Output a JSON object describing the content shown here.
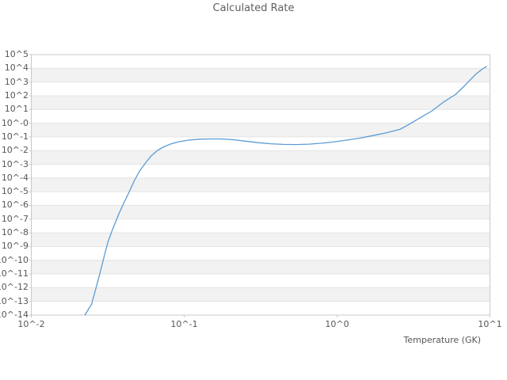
{
  "chart_data": {
    "type": "line",
    "title": "Calculated Rate",
    "xlabel": "Temperature (GK)",
    "ylabel": "",
    "x_scale": "log10",
    "y_scale": "log10",
    "x_range_log10": [
      -2,
      1
    ],
    "y_range_log10": [
      -14,
      5
    ],
    "x_tick_labels": [
      "10^-2",
      "10^-1",
      "10^0",
      "10^1"
    ],
    "x_tick_log10": [
      -2,
      -1,
      0,
      1
    ],
    "y_tick_labels": [
      "10^5",
      "10^4",
      "10^3",
      "10^2",
      "10^1",
      "10^-0",
      "10^-1",
      "10^-2",
      "10^-3",
      "10^-4",
      "10^-5",
      "10^-6",
      "10^-7",
      "10^-8",
      "10^-9",
      "10^-10",
      "10^-11",
      "10^-12",
      "10^-13",
      "10^-14"
    ],
    "y_tick_log10": [
      5,
      4,
      3,
      2,
      1,
      0,
      -1,
      -2,
      -3,
      -4,
      -5,
      -6,
      -7,
      -8,
      -9,
      -10,
      -11,
      -12,
      -13,
      -14
    ],
    "grid": "horizontal decade lines with alternating stripe bands",
    "legend": "none",
    "colors": {
      "line": "#5b9bd5",
      "stripe_fill": "#f2f2f2",
      "gridline": "#e4e4e4",
      "border": "#c9c9c9",
      "tick": "#c9c9c9",
      "text": "#565656"
    },
    "series": [
      {
        "name": "Calculated Rate",
        "points_T_log10rate": [
          [
            0.0224,
            -14.0
          ],
          [
            0.0231,
            -13.77
          ],
          [
            0.0239,
            -13.48
          ],
          [
            0.0248,
            -13.22
          ],
          [
            0.0253,
            -12.84
          ],
          [
            0.0263,
            -12.15
          ],
          [
            0.0276,
            -11.29
          ],
          [
            0.029,
            -10.36
          ],
          [
            0.0304,
            -9.44
          ],
          [
            0.0318,
            -8.63
          ],
          [
            0.0335,
            -7.94
          ],
          [
            0.0355,
            -7.24
          ],
          [
            0.0376,
            -6.55
          ],
          [
            0.0404,
            -5.8
          ],
          [
            0.0433,
            -5.11
          ],
          [
            0.047,
            -4.24
          ],
          [
            0.0511,
            -3.49
          ],
          [
            0.0558,
            -2.91
          ],
          [
            0.0607,
            -2.39
          ],
          [
            0.0669,
            -1.99
          ],
          [
            0.0736,
            -1.73
          ],
          [
            0.0821,
            -1.51
          ],
          [
            0.0923,
            -1.35
          ],
          [
            0.106,
            -1.24
          ],
          [
            0.125,
            -1.17
          ],
          [
            0.148,
            -1.15
          ],
          [
            0.175,
            -1.15
          ],
          [
            0.207,
            -1.2
          ],
          [
            0.251,
            -1.31
          ],
          [
            0.304,
            -1.42
          ],
          [
            0.368,
            -1.5
          ],
          [
            0.446,
            -1.55
          ],
          [
            0.54,
            -1.56
          ],
          [
            0.654,
            -1.53
          ],
          [
            0.793,
            -1.46
          ],
          [
            0.96,
            -1.36
          ],
          [
            1.16,
            -1.23
          ],
          [
            1.41,
            -1.09
          ],
          [
            1.71,
            -0.91
          ],
          [
            2.07,
            -0.72
          ],
          [
            2.58,
            -0.45
          ],
          [
            2.92,
            -0.12
          ],
          [
            3.5,
            0.4
          ],
          [
            4.18,
            0.9
          ],
          [
            5.01,
            1.57
          ],
          [
            5.99,
            2.11
          ],
          [
            7.0,
            2.86
          ],
          [
            8.06,
            3.56
          ],
          [
            8.88,
            3.93
          ],
          [
            9.48,
            4.13
          ]
        ]
      }
    ]
  }
}
